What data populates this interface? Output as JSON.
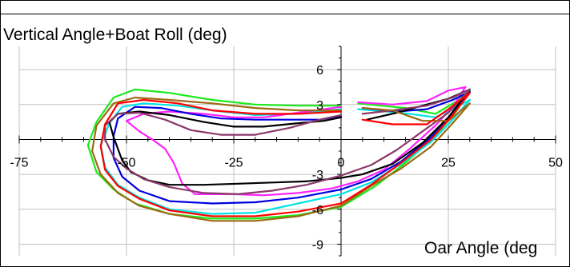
{
  "chart_data": {
    "type": "line",
    "title": "",
    "ylabel": "Vertical Angle+Boat Roll (deg)",
    "xlabel": "Oar Angle (deg",
    "xlim": [
      -75,
      50
    ],
    "ylim": [
      -10,
      8
    ],
    "x_ticks": [
      -75,
      -50,
      -25,
      0,
      25,
      50
    ],
    "y_ticks": [
      6,
      3,
      -3,
      -6,
      -9
    ],
    "grid": true,
    "colors": [
      "#1aeb1a",
      "#00e4e4",
      "#ff22ff",
      "#0000e0",
      "#000000",
      "#b04f2a",
      "#8b3a6a",
      "#9b6a14",
      "#ff0000"
    ],
    "series": [
      {
        "color": "#1aeb1a",
        "points": [
          [
            30,
            4.2
          ],
          [
            27,
            2.5
          ],
          [
            22,
            0.3
          ],
          [
            15,
            -2
          ],
          [
            8,
            -4
          ],
          [
            0,
            -5.8
          ],
          [
            -10,
            -6.5
          ],
          [
            -20,
            -6.8
          ],
          [
            -30,
            -6.8
          ],
          [
            -40,
            -6.4
          ],
          [
            -48,
            -5.5
          ],
          [
            -53,
            -4.3
          ],
          [
            -57,
            -2.8
          ],
          [
            -59,
            -0.5
          ],
          [
            -57,
            1.5
          ],
          [
            -53,
            3.6
          ],
          [
            -48,
            4.3
          ],
          [
            -40,
            4
          ],
          [
            -30,
            3.4
          ],
          [
            -20,
            3
          ],
          [
            -10,
            2.9
          ],
          [
            0,
            2.9
          ]
        ]
      },
      {
        "color": "#1aeb1a",
        "points": [
          [
            4,
            3.1
          ],
          [
            15,
            2.7
          ],
          [
            22,
            2.2
          ],
          [
            27,
            3.3
          ],
          [
            30,
            4.2
          ]
        ]
      },
      {
        "color": "#00e4e4",
        "points": [
          [
            30,
            3.4
          ],
          [
            26,
            1.7
          ],
          [
            21,
            -0.2
          ],
          [
            14,
            -2.1
          ],
          [
            7,
            -3.7
          ],
          [
            0,
            -4.7
          ],
          [
            -10,
            -5.5
          ],
          [
            -20,
            -6.3
          ],
          [
            -30,
            -6.4
          ],
          [
            -40,
            -6
          ],
          [
            -47,
            -5
          ],
          [
            -52,
            -3.9
          ],
          [
            -55,
            -2.4
          ],
          [
            -56,
            -0.5
          ],
          [
            -54,
            1.4
          ],
          [
            -51,
            2.8
          ],
          [
            -46,
            3.1
          ],
          [
            -38,
            2.9
          ],
          [
            -30,
            2.5
          ],
          [
            -20,
            2.1
          ],
          [
            -10,
            2.2
          ],
          [
            0,
            2.6
          ]
        ]
      },
      {
        "color": "#00e4e4",
        "points": [
          [
            4,
            2.6
          ],
          [
            14,
            2.3
          ],
          [
            22,
            1.9
          ],
          [
            27,
            2.8
          ],
          [
            30,
            3.4
          ]
        ]
      },
      {
        "color": "#ff22ff",
        "points": [
          [
            29,
            4.5
          ],
          [
            26,
            2.8
          ],
          [
            22,
            1.2
          ],
          [
            16,
            -0.8
          ],
          [
            10,
            -2.6
          ],
          [
            4,
            -3.6
          ],
          [
            -2,
            -4.2
          ],
          [
            -10,
            -4.6
          ],
          [
            -18,
            -4.8
          ],
          [
            -25,
            -4.7
          ],
          [
            -30,
            -4.7
          ],
          [
            -34,
            -4.7
          ],
          [
            -37,
            -3.8
          ],
          [
            -39,
            -2
          ],
          [
            -41,
            -0.8
          ],
          [
            -44,
            0
          ],
          [
            -47,
            0.7
          ],
          [
            -50,
            1.6
          ],
          [
            -46,
            2.2
          ],
          [
            -40,
            2.4
          ],
          [
            -32,
            2.2
          ],
          [
            -25,
            1.9
          ],
          [
            -18,
            1.9
          ],
          [
            -12,
            2.2
          ],
          [
            -6,
            2.5
          ],
          [
            0,
            2.8
          ]
        ]
      },
      {
        "color": "#ff22ff",
        "points": [
          [
            4,
            3.2
          ],
          [
            12,
            3
          ],
          [
            20,
            3.3
          ],
          [
            25,
            4.2
          ],
          [
            29,
            4.5
          ]
        ]
      },
      {
        "color": "#0000e0",
        "points": [
          [
            30,
            4.1
          ],
          [
            26,
            2.3
          ],
          [
            21,
            0.2
          ],
          [
            14,
            -1.9
          ],
          [
            7,
            -3.4
          ],
          [
            0,
            -4.3
          ],
          [
            -10,
            -5
          ],
          [
            -20,
            -5.4
          ],
          [
            -30,
            -5.5
          ],
          [
            -40,
            -5.3
          ],
          [
            -47,
            -4.4
          ],
          [
            -51,
            -3.2
          ],
          [
            -53,
            -1.6
          ],
          [
            -53,
            0.3
          ],
          [
            -52,
            1.8
          ],
          [
            -48,
            2.8
          ],
          [
            -42,
            2.7
          ],
          [
            -35,
            2.2
          ],
          [
            -28,
            1.8
          ],
          [
            -20,
            1.7
          ],
          [
            -12,
            1.7
          ],
          [
            -5,
            1.7
          ],
          [
            0,
            2
          ]
        ]
      },
      {
        "color": "#0000e0",
        "points": [
          [
            5,
            2.7
          ],
          [
            13,
            2.4
          ],
          [
            20,
            2.6
          ],
          [
            26,
            3.4
          ],
          [
            30,
            4.1
          ]
        ]
      },
      {
        "color": "#000000",
        "points": [
          [
            30,
            4.3
          ],
          [
            25,
            1.9
          ],
          [
            19,
            -0.3
          ],
          [
            12,
            -2.1
          ],
          [
            5,
            -3
          ],
          [
            0,
            -3.3
          ],
          [
            -8,
            -3.6
          ],
          [
            -16,
            -3.7
          ],
          [
            -24,
            -3.8
          ],
          [
            -32,
            -3.9
          ],
          [
            -40,
            -3.9
          ],
          [
            -45,
            -3.5
          ],
          [
            -49,
            -2.8
          ],
          [
            -51,
            -1.8
          ],
          [
            -53,
            0.2
          ],
          [
            -54,
            1.5
          ],
          [
            -52,
            2.2
          ],
          [
            -47,
            2.4
          ],
          [
            -40,
            2.1
          ],
          [
            -32,
            1.5
          ],
          [
            -25,
            1.1
          ],
          [
            -18,
            1.1
          ],
          [
            -10,
            1.4
          ],
          [
            -4,
            1.6
          ],
          [
            0,
            1.9
          ]
        ]
      },
      {
        "color": "#000000",
        "points": [
          [
            6,
            1.7
          ],
          [
            13,
            2.3
          ],
          [
            19,
            2.9
          ],
          [
            25,
            3.5
          ],
          [
            30,
            4.3
          ]
        ]
      },
      {
        "color": "#8b3a6a",
        "points": [
          [
            30,
            4.3
          ],
          [
            25,
            2.3
          ],
          [
            19,
            0.7
          ],
          [
            13,
            -0.9
          ],
          [
            7,
            -2.2
          ],
          [
            0,
            -3.1
          ],
          [
            -8,
            -3.9
          ],
          [
            -16,
            -4.4
          ],
          [
            -24,
            -4.7
          ],
          [
            -32,
            -4.6
          ],
          [
            -40,
            -4.1
          ],
          [
            -46,
            -3.4
          ],
          [
            -50,
            -2.5
          ],
          [
            -53,
            -1.5
          ],
          [
            -55,
            0
          ],
          [
            -55,
            1.2
          ],
          [
            -52,
            2.2
          ],
          [
            -47,
            2.3
          ],
          [
            -41,
            1.7
          ],
          [
            -35,
            0.8
          ],
          [
            -28,
            0.4
          ],
          [
            -20,
            0.4
          ],
          [
            -12,
            1
          ],
          [
            -5,
            1.7
          ],
          [
            0,
            2.1
          ]
        ]
      },
      {
        "color": "#8b3a6a",
        "points": [
          [
            5,
            2.2
          ],
          [
            12,
            2.5
          ],
          [
            20,
            2.9
          ],
          [
            26,
            3.6
          ],
          [
            30,
            4.3
          ]
        ]
      },
      {
        "color": "#9b6a14",
        "points": [
          [
            30,
            3.1
          ],
          [
            26,
            1.4
          ],
          [
            21,
            -0.6
          ],
          [
            14,
            -2.5
          ],
          [
            7,
            -4
          ],
          [
            0,
            -5.7
          ],
          [
            -10,
            -6.6
          ],
          [
            -20,
            -7
          ],
          [
            -30,
            -7
          ],
          [
            -40,
            -6.4
          ],
          [
            -47,
            -5.7
          ],
          [
            -52,
            -4.6
          ],
          [
            -56,
            -3
          ],
          [
            -58,
            -1
          ],
          [
            -57,
            1.2
          ],
          [
            -53,
            3.1
          ],
          [
            -48,
            3.6
          ],
          [
            -40,
            3.4
          ],
          [
            -30,
            3.1
          ],
          [
            -20,
            2.7
          ],
          [
            -10,
            2.5
          ],
          [
            0,
            2.5
          ]
        ]
      },
      {
        "color": "#9b6a14",
        "points": [
          [
            5,
            2.7
          ],
          [
            12,
            2.5
          ],
          [
            19,
            1.6
          ],
          [
            25,
            1.6
          ],
          [
            30,
            3.1
          ]
        ]
      },
      {
        "color": "#ff0000",
        "points": [
          [
            30,
            4
          ],
          [
            26,
            2.1
          ],
          [
            21,
            0
          ],
          [
            14,
            -2
          ],
          [
            7,
            -3.9
          ],
          [
            0,
            -5.5
          ],
          [
            -10,
            -6.2
          ],
          [
            -20,
            -6.6
          ],
          [
            -30,
            -6.6
          ],
          [
            -40,
            -6.1
          ],
          [
            -47,
            -5.1
          ],
          [
            -52,
            -4
          ],
          [
            -55,
            -2.6
          ],
          [
            -56,
            -0.6
          ],
          [
            -55,
            1.3
          ],
          [
            -52,
            3.1
          ],
          [
            -46,
            3.4
          ],
          [
            -38,
            3.1
          ],
          [
            -30,
            2.5
          ],
          [
            -20,
            2.2
          ],
          [
            -10,
            2.2
          ],
          [
            0,
            2.4
          ]
        ]
      },
      {
        "color": "#ff0000",
        "points": [
          [
            5,
            1.7
          ],
          [
            12,
            1.3
          ],
          [
            20,
            1.3
          ],
          [
            25,
            2.6
          ],
          [
            30,
            4
          ]
        ]
      }
    ]
  }
}
